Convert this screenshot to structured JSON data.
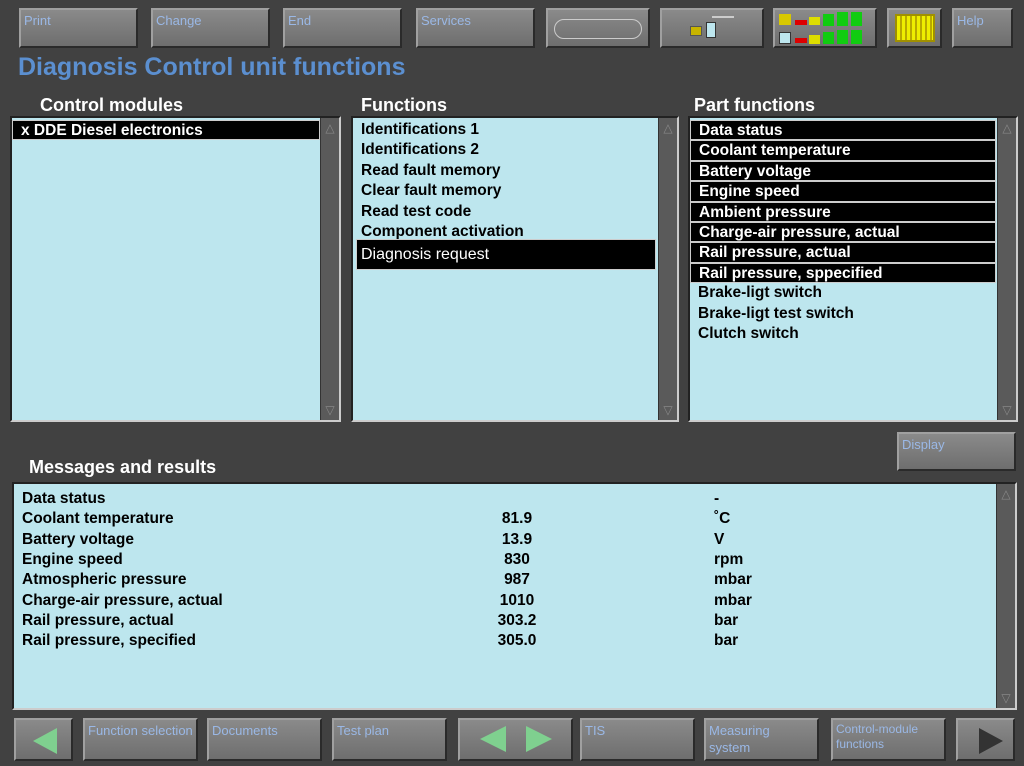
{
  "toolbar": {
    "print": "Print",
    "change": "Change",
    "end": "End",
    "services": "Services",
    "help": "Help",
    "icons": [
      "pipe-icon",
      "connection-icon",
      "signal-strength-icon",
      "connector-icon"
    ]
  },
  "page_title": "Diagnosis Control unit functions",
  "control_modules": {
    "header": "Control modules",
    "items": [
      "x DDE Diesel electronics"
    ],
    "selected": 0
  },
  "functions": {
    "header": "Functions",
    "items": [
      "Identifications 1",
      "Identifications 2",
      "Read fault memory",
      "Clear fault memory",
      "Read test code",
      "Component activation",
      "Diagnosis request"
    ],
    "selected": 6
  },
  "part_functions": {
    "header": "Part functions",
    "items": [
      "Data  status",
      "Coolant temperature",
      "Battery voltage",
      "Engine speed",
      "Ambient pressure",
      "Charge-air pressure, actual",
      "Rail pressure, actual",
      "Rail pressure, sppecified",
      "Brake-ligt switch",
      "Brake-ligt test switch",
      "Clutch switch"
    ],
    "selected_count": 8
  },
  "display_button": "Display",
  "messages": {
    "header": "Messages and results",
    "rows": [
      {
        "label": "Data status",
        "value": "",
        "unit": "-"
      },
      {
        "label": "Coolant temperature",
        "value": "81.9",
        "unit": "˚C"
      },
      {
        "label": "Battery voltage",
        "value": "13.9",
        "unit": "V"
      },
      {
        "label": "Engine speed",
        "value": "830",
        "unit": "rpm"
      },
      {
        "label": "Atmospheric pressure",
        "value": "987",
        "unit": "mbar"
      },
      {
        "label": "Charge-air pressure, actual",
        "value": "1010",
        "unit": "mbar"
      },
      {
        "label": "Rail pressure, actual",
        "value": "303.2",
        "unit": "bar"
      },
      {
        "label": "Rail pressure, specified",
        "value": "305.0",
        "unit": "bar"
      }
    ]
  },
  "bottom": {
    "function_selection": "Function selection",
    "documents": "Documents",
    "test_plan": "Test plan",
    "tis": "TIS",
    "measuring_system": "Measuring system",
    "control_module_functions": "Control-module functions"
  },
  "colors": {
    "panel": "#bde6ee",
    "title": "#5b8fd0",
    "button_text": "#9ab8e6",
    "arrow_green": "#7fd08f"
  }
}
